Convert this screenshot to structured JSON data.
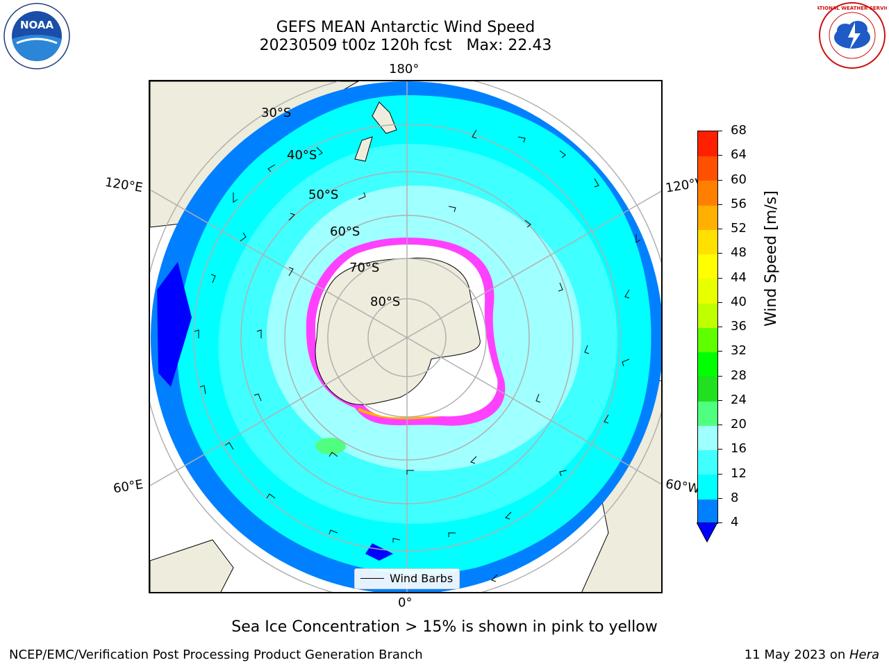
{
  "title": {
    "line1": "GEFS MEAN Antarctic Wind Speed",
    "line2": "20230509 t00z 120h fcst   Max: 22.43"
  },
  "logos": {
    "left": {
      "icon": "noaa-logo",
      "text": "NOAA"
    },
    "right": {
      "icon": "nws-logo",
      "text": "NATIONAL WEATHER SERVICE"
    }
  },
  "map": {
    "projection": "south-polar-stereographic",
    "longitude_labels": {
      "top": "180°",
      "bottom": "0°",
      "left_upper": "120°E",
      "left_lower": "60°E",
      "right_upper": "120°W",
      "right_lower": "60°W"
    },
    "latitude_labels": [
      "30°S",
      "40°S",
      "50°S",
      "60°S",
      "70°S",
      "80°S"
    ],
    "legend": {
      "label": "Wind Barbs"
    },
    "colors": {
      "land": "#eeecdc",
      "ocean_4_8": "#0080ff",
      "ocean_8_12": "#00ffff",
      "ocean_12_16": "#40ffff",
      "ocean_16_20": "#a0ffff",
      "sea_ice_low": "#ff40ff",
      "sea_ice_high": "#ffb000",
      "grid": "#b0b0b0"
    }
  },
  "colorbar": {
    "title": "Wind Speed [m/s]",
    "ticks": [
      "4",
      "8",
      "12",
      "16",
      "20",
      "24",
      "28",
      "32",
      "36",
      "40",
      "44",
      "48",
      "52",
      "56",
      "60",
      "64",
      "68"
    ],
    "colors": [
      "#0080ff",
      "#00ffff",
      "#40ffff",
      "#a0ffff",
      "#50ff80",
      "#20e020",
      "#00ff00",
      "#60ff00",
      "#c0ff00",
      "#e8ff00",
      "#ffff00",
      "#ffe000",
      "#ffb000",
      "#ff8000",
      "#ff5000",
      "#ff2000"
    ],
    "under_color": "#0000ff"
  },
  "caption": "Sea Ice Concentration > 15% is shown in pink to yellow",
  "footer": {
    "left": "NCEP/EMC/Verification Post Processing Product Generation Branch",
    "right_date": "11 May 2023 on ",
    "right_machine": "Hera"
  }
}
